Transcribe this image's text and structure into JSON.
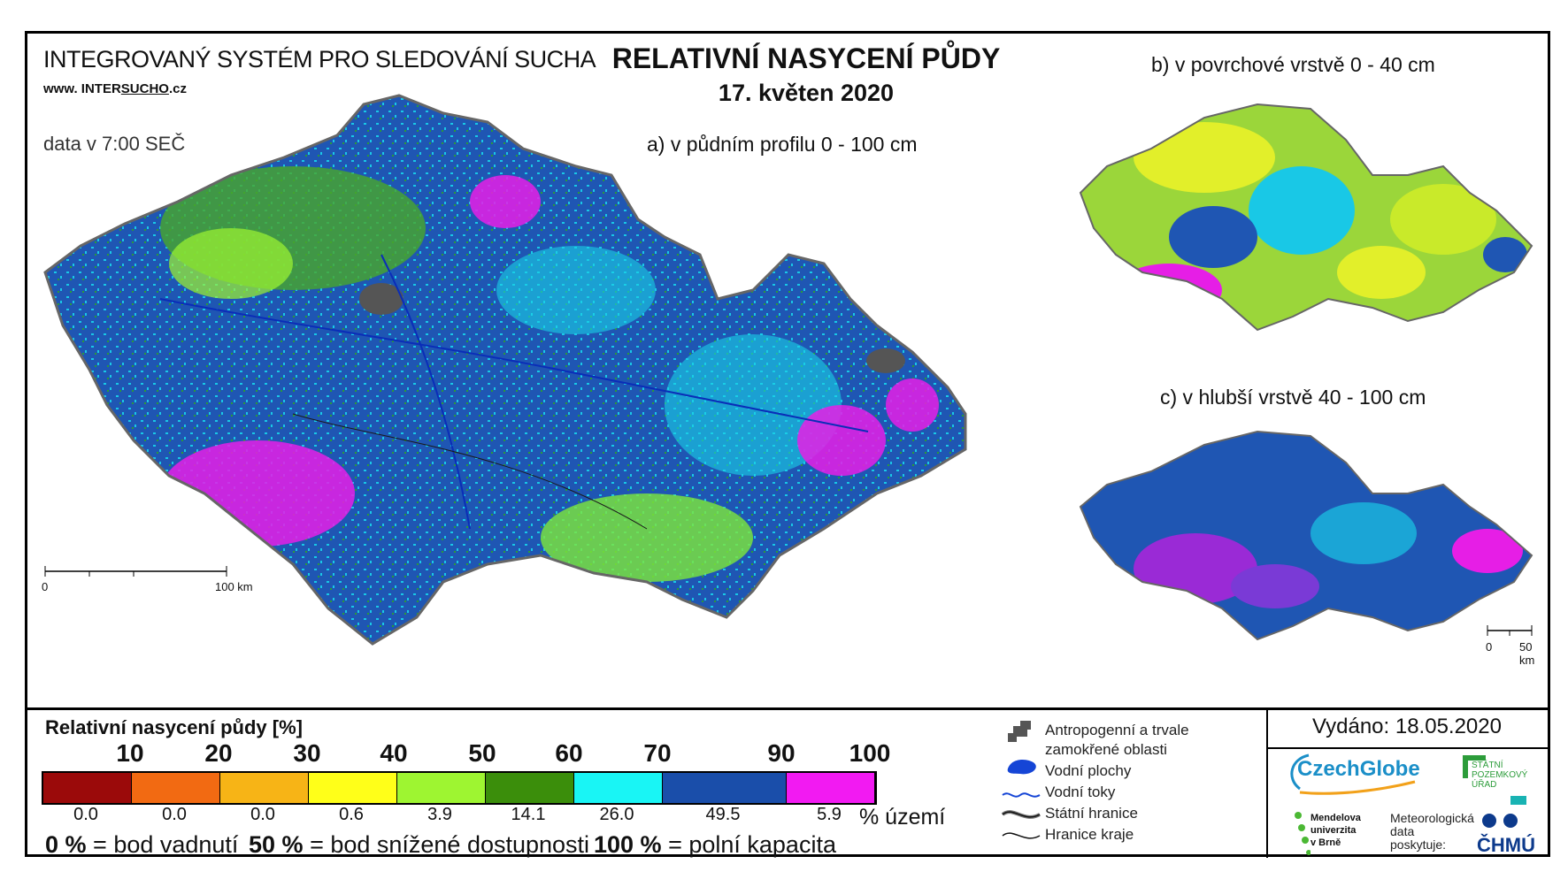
{
  "header": {
    "system_title": "INTEGROVANÝ SYSTÉM PRO SLEDOVÁNÍ SUCHA",
    "website_prefix": "www. INTER",
    "website_mid": "SUCHO",
    "website_suffix": ".cz",
    "data_time": "data v 7:00 SEČ",
    "main_title": "RELATIVNÍ NASYCENÍ PŮDY",
    "date": "17. květen 2020"
  },
  "maps": {
    "a_label": "a) v půdním profilu 0 - 100 cm",
    "b_label": "b) v povrchové vrstvě 0 - 40 cm",
    "c_label": "c) v hlubší vrstvě 40 - 100 cm",
    "scale_main": {
      "start": "0",
      "end": "100 km"
    },
    "scale_small": {
      "start": "0",
      "end": "50 km"
    }
  },
  "legend": {
    "title": "Relativní nasycení půdy [%]",
    "ticks": [
      "10",
      "20",
      "30",
      "40",
      "50",
      "60",
      "70",
      "90",
      "100"
    ],
    "classes": [
      {
        "color": "#9b0a0a",
        "pct": "0.0"
      },
      {
        "color": "#f26a12",
        "pct": "0.0"
      },
      {
        "color": "#f7b416",
        "pct": "0.0"
      },
      {
        "color": "#ffff19",
        "pct": "0.6"
      },
      {
        "color": "#9ef531",
        "pct": "3.9"
      },
      {
        "color": "#3b8e0b",
        "pct": "14.1"
      },
      {
        "color": "#19f5f5",
        "pct": "26.0"
      },
      {
        "color": "#1a4eaa",
        "pct": "49.5"
      },
      {
        "color": "#f21af2",
        "pct": "5.9"
      }
    ],
    "pct_unit": "% území",
    "definitions": [
      {
        "value": "0 %",
        "text": "= bod vadnutí"
      },
      {
        "value": "50 %",
        "text": "= bod snížené dostupnosti"
      },
      {
        "value": "100 %",
        "text": "= polní kapacita"
      }
    ]
  },
  "map_legend": {
    "anthropogenic_1": "Antropogenní a trvale",
    "anthropogenic_2": "zamokřené oblasti",
    "water_areas": "Vodní plochy",
    "water_streams": "Vodní toky",
    "state_border": "Státní hranice",
    "region_border": "Hranice kraje"
  },
  "footer": {
    "issued": "Vydáno: 18.05.2020",
    "czechglobe": "CzechGlobe",
    "spu_1": "STÁTNÍ",
    "spu_2": "POZEMKOVÝ",
    "spu_3": "ÚŘAD",
    "mendel_1": "Mendelova",
    "mendel_2": "univerzita",
    "mendel_3": "v Brně",
    "met_1": "Meteorologická",
    "met_2": "data",
    "met_3": "poskytuje:",
    "chmu": "ČHMÚ"
  }
}
